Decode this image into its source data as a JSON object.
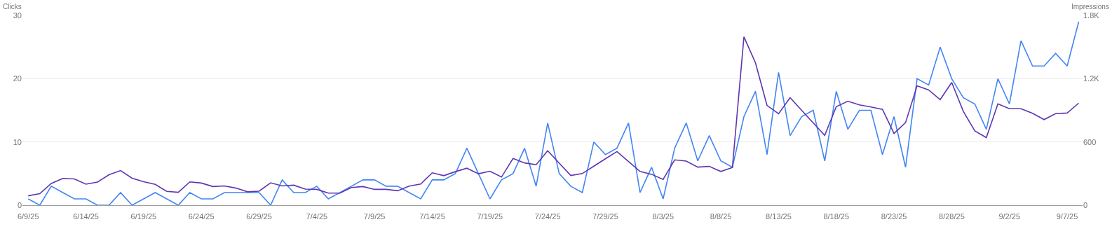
{
  "chart_data": {
    "type": "line",
    "ylabel": "Clicks",
    "y2label": "Impressions",
    "x": [
      "--06-09",
      "--06-10",
      "--06-11",
      "--06-12",
      "--06-13",
      "--06-14",
      "--06-15",
      "--06-16",
      "--06-17",
      "--06-18",
      "--06-19",
      "--06-20",
      "--06-21",
      "--06-22",
      "--06-23",
      "--06-24",
      "--06-25",
      "--06-26",
      "--06-27",
      "--06-28",
      "--06-29",
      "--06-30",
      "--07-01",
      "--07-02",
      "--07-03",
      "--07-04",
      "--07-05",
      "--07-06",
      "--07-07",
      "--07-08",
      "--07-09",
      "--07-10",
      "--07-11",
      "--07-12",
      "--07-13",
      "--07-14",
      "--07-15",
      "--07-16",
      "--07-17",
      "--07-18",
      "--07-19",
      "--07-20",
      "--07-21",
      "--07-22",
      "--07-23",
      "--07-24",
      "--07-25",
      "--07-26",
      "--07-27",
      "--07-28",
      "--07-29",
      "--07-30",
      "--07-31",
      "--08-01",
      "--08-02",
      "--08-03",
      "--08-04",
      "--08-05",
      "--08-06",
      "--08-07",
      "--08-08",
      "--08-09",
      "--08-10",
      "--08-11",
      "--08-12",
      "--08-13",
      "--08-14",
      "--08-15",
      "--08-16",
      "--08-17",
      "--08-18",
      "--08-19",
      "--08-20",
      "--08-21",
      "--08-22",
      "--08-23",
      "--08-24",
      "--08-25",
      "--08-26",
      "--08-27",
      "--08-28",
      "--08-29",
      "--08-30",
      "--08-31",
      "--09-01",
      "--09-02",
      "--09-03",
      "--09-04",
      "--09-05",
      "--09-06",
      "--09-07",
      "--09-08"
    ],
    "series": [
      {
        "color": "#4285f4",
        "values": [
          1,
          0,
          3,
          2,
          1,
          1,
          0,
          0,
          2,
          0,
          1,
          2,
          1,
          0,
          2,
          1,
          1,
          2,
          2,
          2,
          2,
          0,
          4,
          2,
          2,
          3,
          1,
          2,
          3,
          4,
          4,
          3,
          3,
          2,
          1,
          4,
          4,
          5,
          9,
          5,
          1,
          4,
          5,
          9,
          3,
          13,
          5,
          3,
          2,
          10,
          8,
          9,
          13,
          2,
          6,
          1,
          9,
          13,
          7,
          11,
          7,
          6,
          14,
          18,
          8,
          21,
          11,
          14,
          15,
          7,
          18,
          12,
          15,
          15,
          8,
          14,
          6,
          20,
          19,
          25,
          20,
          17,
          16,
          12,
          20,
          16,
          26,
          22,
          22,
          24,
          22,
          29
        ]
      },
      {
        "color": "#5e35b1",
        "axis": "y2",
        "values": [
          89,
          109,
          206,
          254,
          249,
          199,
          219,
          289,
          328,
          256,
          223,
          197,
          131,
          122,
          221,
          210,
          177,
          183,
          162,
          127,
          133,
          212,
          183,
          190,
          153,
          150,
          115,
          115,
          168,
          177,
          150,
          150,
          137,
          181,
          201,
          307,
          280,
          318,
          351,
          298,
          322,
          267,
          443,
          401,
          384,
          516,
          399,
          282,
          300,
          370,
          440,
          509,
          414,
          320,
          293,
          245,
          430,
          419,
          361,
          368,
          320,
          357,
          1597,
          1350,
          946,
          867,
          1019,
          900,
          781,
          663,
          935,
          986,
          951,
          931,
          909,
          680,
          783,
          1133,
          1093,
          1001,
          1164,
          891,
          704,
          641,
          961,
          915,
          915,
          872,
          812,
          869,
          874,
          968
        ]
      }
    ],
    "xlim": [
      "--06-08T12:00",
      "--09-08T08:00"
    ],
    "xticks": [
      {
        "value": "--06-09",
        "label": "6/9/25"
      },
      {
        "value": "--06-14",
        "label": "6/14/25"
      },
      {
        "value": "--06-19",
        "label": "6/19/25"
      },
      {
        "value": "--06-24",
        "label": "6/24/25"
      },
      {
        "value": "--06-29",
        "label": "6/29/25"
      },
      {
        "value": "--07-04",
        "label": "7/4/25"
      },
      {
        "value": "--07-09",
        "label": "7/9/25"
      },
      {
        "value": "--07-14",
        "label": "7/14/25"
      },
      {
        "value": "--07-19",
        "label": "7/19/25"
      },
      {
        "value": "--07-24",
        "label": "7/24/25"
      },
      {
        "value": "--07-29",
        "label": "7/29/25"
      },
      {
        "value": "--08-03",
        "label": "8/3/25"
      },
      {
        "value": "--08-08",
        "label": "8/8/25"
      },
      {
        "value": "--08-13",
        "label": "8/13/25"
      },
      {
        "value": "--08-18",
        "label": "8/18/25"
      },
      {
        "value": "--08-23",
        "label": "8/23/25"
      },
      {
        "value": "--08-28",
        "label": "8/28/25"
      },
      {
        "value": "--09-02",
        "label": "9/2/25"
      },
      {
        "value": "--09-07",
        "label": "9/7/25"
      }
    ],
    "ylim": [
      0,
      30
    ],
    "yticks": [
      0,
      10,
      20,
      30
    ],
    "y2lim": [
      0,
      1800
    ],
    "y2ticks": [
      0,
      600,
      {
        "value": 1200,
        "label": "1.2K"
      },
      {
        "value": 1800,
        "label": "1.8K"
      }
    ],
    "grid": "y",
    "marker": "none",
    "line_style": "solid"
  }
}
